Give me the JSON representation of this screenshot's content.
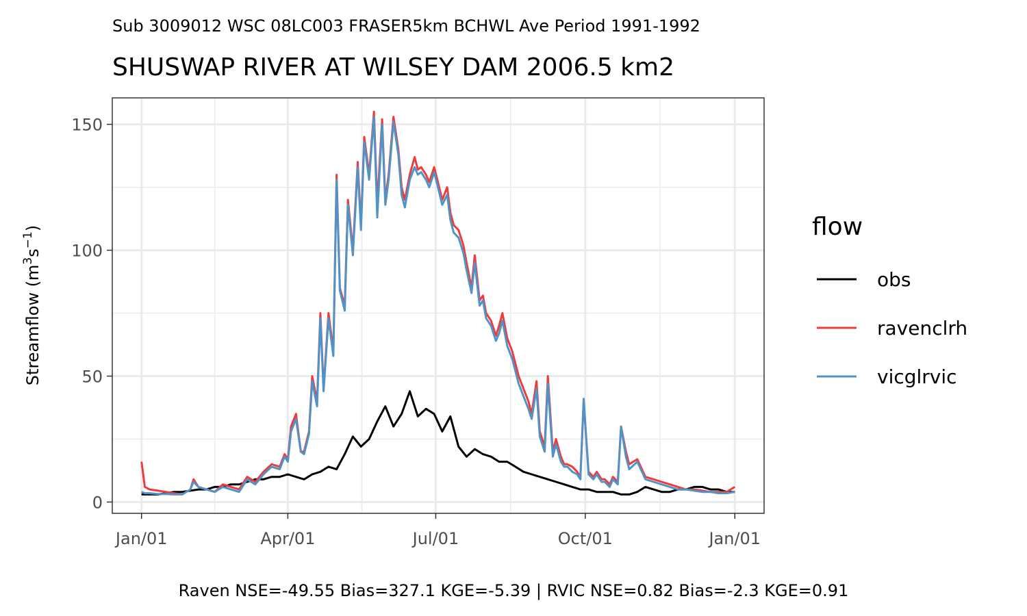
{
  "chart_data": {
    "type": "line",
    "subtitle": "Sub 3009012 WSC 08LC003 FRASER5km BCHWL Ave Period 1991-1992",
    "title": "SHUSWAP RIVER AT WILSEY DAM 2006.5 km2",
    "ylabel_main": "Streamflow (m",
    "ylabel_sup1": "3",
    "ylabel_mid": "s",
    "ylabel_sup2": "−1",
    "ylabel_end": ")",
    "xlabel": "",
    "caption": "Raven NSE=-49.55 Bias=327.1 KGE=-5.39 | RVIC NSE=0.82 Bias=-2.3 KGE=0.91",
    "x_ticks": [
      "Jan/01",
      "Apr/01",
      "Jul/01",
      "Oct/01",
      "Jan/01"
    ],
    "x_tick_days": [
      0,
      90,
      181,
      273,
      365
    ],
    "y_ticks": [
      0,
      50,
      100,
      150
    ],
    "ylim": [
      -4.5,
      160.5
    ],
    "xlim": [
      -18,
      383
    ],
    "grid": true,
    "legend_position": "right",
    "legend_title": "flow",
    "series": [
      {
        "name": "obs",
        "color": "#000000",
        "x": [
          0,
          5,
          10,
          15,
          20,
          25,
          30,
          35,
          40,
          45,
          50,
          55,
          60,
          65,
          70,
          75,
          80,
          85,
          90,
          95,
          100,
          105,
          110,
          115,
          120,
          125,
          130,
          135,
          140,
          145,
          150,
          155,
          160,
          165,
          170,
          175,
          180,
          185,
          190,
          195,
          200,
          205,
          210,
          215,
          220,
          225,
          230,
          235,
          240,
          245,
          250,
          255,
          260,
          265,
          270,
          275,
          280,
          285,
          290,
          295,
          300,
          305,
          310,
          315,
          320,
          325,
          330,
          335,
          340,
          345,
          350,
          355,
          360,
          365
        ],
        "values": [
          3,
          3,
          3,
          3.5,
          4,
          4,
          4.5,
          5,
          5,
          6,
          6,
          7,
          7,
          8,
          9,
          9,
          10,
          10,
          11,
          10,
          9,
          11,
          12,
          14,
          13,
          19,
          26,
          22,
          25,
          32,
          38,
          30,
          35,
          44,
          34,
          37,
          35,
          28,
          34,
          22,
          18,
          21,
          19,
          18,
          16,
          16,
          14,
          12,
          11,
          10,
          9,
          8,
          7,
          6,
          5,
          5,
          4,
          4,
          4,
          3,
          3,
          4,
          6,
          5,
          4,
          4,
          5,
          5,
          6,
          6,
          5,
          5,
          4,
          4
        ]
      },
      {
        "name": "ravenclrh",
        "color": "#f03b38",
        "x": [
          0,
          2,
          5,
          10,
          15,
          20,
          25,
          30,
          32,
          35,
          40,
          45,
          50,
          55,
          60,
          65,
          70,
          75,
          80,
          85,
          88,
          90,
          92,
          95,
          98,
          100,
          103,
          105,
          108,
          110,
          112,
          115,
          118,
          120,
          122,
          125,
          127,
          130,
          133,
          135,
          137,
          140,
          143,
          145,
          148,
          150,
          152,
          155,
          158,
          160,
          162,
          165,
          168,
          170,
          172,
          175,
          177,
          180,
          182,
          185,
          188,
          190,
          192,
          195,
          198,
          200,
          203,
          205,
          208,
          210,
          212,
          215,
          218,
          220,
          222,
          225,
          228,
          230,
          232,
          235,
          238,
          240,
          243,
          245,
          248,
          250,
          253,
          255,
          258,
          260,
          262,
          265,
          268,
          270,
          272,
          275,
          278,
          280,
          283,
          285,
          288,
          290,
          293,
          295,
          298,
          300,
          305,
          310,
          315,
          320,
          325,
          330,
          335,
          340,
          345,
          350,
          355,
          360,
          365
        ],
        "values": [
          16,
          6,
          5,
          4.5,
          4,
          3.5,
          3,
          5,
          9,
          6,
          5,
          4,
          7,
          6,
          5,
          10,
          8,
          12,
          15,
          14,
          19,
          17,
          30,
          35,
          20,
          20,
          28,
          50,
          40,
          75,
          45,
          75,
          60,
          130,
          85,
          78,
          120,
          100,
          135,
          110,
          145,
          130,
          155,
          118,
          152,
          120,
          130,
          153,
          140,
          125,
          120,
          130,
          137,
          132,
          133,
          130,
          127,
          133,
          128,
          120,
          125,
          115,
          110,
          108,
          102,
          95,
          85,
          98,
          80,
          82,
          75,
          72,
          66,
          70,
          75,
          65,
          60,
          55,
          50,
          45,
          40,
          35,
          48,
          28,
          22,
          50,
          20,
          25,
          18,
          15,
          15,
          14,
          12,
          10,
          40,
          12,
          10,
          12,
          9,
          9,
          7,
          10,
          8,
          30,
          20,
          15,
          17,
          10,
          9,
          8,
          7,
          6,
          5,
          5,
          4.5,
          4,
          4,
          4,
          6
        ]
      },
      {
        "name": "vicglrvic",
        "color": "#5093c9",
        "x": [
          0,
          2,
          5,
          10,
          15,
          20,
          25,
          30,
          32,
          35,
          40,
          45,
          50,
          55,
          60,
          65,
          70,
          75,
          80,
          85,
          88,
          90,
          92,
          95,
          98,
          100,
          103,
          105,
          108,
          110,
          112,
          115,
          118,
          120,
          122,
          125,
          127,
          130,
          133,
          135,
          137,
          140,
          143,
          145,
          148,
          150,
          152,
          155,
          158,
          160,
          162,
          165,
          168,
          170,
          172,
          175,
          177,
          180,
          182,
          185,
          188,
          190,
          192,
          195,
          198,
          200,
          203,
          205,
          208,
          210,
          212,
          215,
          218,
          220,
          222,
          225,
          228,
          230,
          232,
          235,
          238,
          240,
          243,
          245,
          248,
          250,
          253,
          255,
          258,
          260,
          262,
          265,
          268,
          270,
          272,
          275,
          278,
          280,
          283,
          285,
          288,
          290,
          293,
          295,
          298,
          300,
          305,
          310,
          315,
          320,
          325,
          330,
          335,
          340,
          345,
          350,
          355,
          360,
          365
        ],
        "values": [
          4,
          3.5,
          3.5,
          3.2,
          3.2,
          3,
          3,
          5,
          8,
          6,
          5,
          4,
          6,
          5,
          4,
          9,
          7,
          11,
          14,
          13,
          18,
          16,
          28,
          33,
          20,
          19,
          27,
          48,
          38,
          73,
          44,
          73,
          58,
          128,
          84,
          76,
          118,
          98,
          133,
          108,
          143,
          128,
          153,
          113,
          150,
          118,
          128,
          151,
          138,
          122,
          117,
          128,
          133,
          130,
          131,
          128,
          125,
          131,
          126,
          118,
          122,
          112,
          107,
          105,
          99,
          92,
          83,
          95,
          78,
          80,
          73,
          70,
          64,
          67,
          72,
          62,
          57,
          52,
          47,
          42,
          37,
          33,
          45,
          26,
          20,
          47,
          18,
          23,
          16,
          14,
          14,
          12,
          11,
          9,
          41,
          11,
          9,
          11,
          8,
          8,
          6,
          9,
          7,
          30,
          18,
          13,
          16,
          9,
          8,
          7,
          6,
          5,
          5,
          4.5,
          4,
          4,
          3.5,
          3.5,
          4
        ]
      }
    ]
  }
}
